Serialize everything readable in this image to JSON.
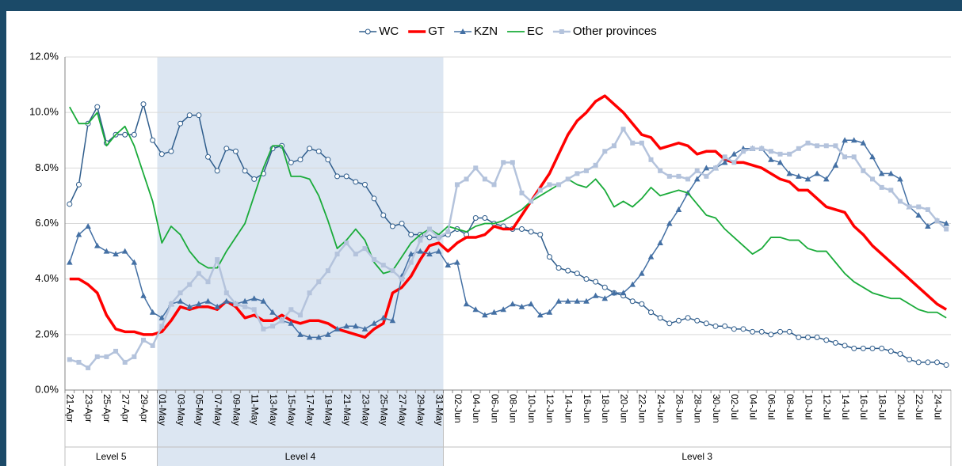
{
  "chart_data": {
    "type": "line",
    "categories": [
      "21-Apr",
      null,
      "23-Apr",
      null,
      "25-Apr",
      null,
      "27-Apr",
      null,
      "29-Apr",
      null,
      "01-May",
      null,
      "03-May",
      null,
      "05-May",
      null,
      "07-May",
      null,
      "09-May",
      null,
      "11-May",
      null,
      "13-May",
      null,
      "15-May",
      null,
      "17-May",
      null,
      "19-May",
      null,
      "21-May",
      null,
      "23-May",
      null,
      "25-May",
      null,
      "27-May",
      null,
      "29-May",
      null,
      "31-May",
      null,
      "02-Jun",
      null,
      "04-Jun",
      null,
      "06-Jun",
      null,
      "08-Jun",
      null,
      "10-Jun",
      null,
      "12-Jun",
      null,
      "14-Jun",
      null,
      "16-Jun",
      null,
      "18-Jun",
      null,
      "20-Jun",
      null,
      "22-Jun",
      null,
      "24-Jun",
      null,
      "26-Jun",
      null,
      "28-Jun",
      null,
      "30-Jun",
      null,
      "02-Jul",
      null,
      "04-Jul",
      null,
      "06-Jul",
      null,
      "08-Jul",
      null,
      "10-Jul",
      null,
      "12-Jul",
      null,
      "14-Jul",
      null,
      "16-Jul",
      null,
      "18-Jul",
      null,
      "20-Jul",
      null,
      "22-Jul",
      null,
      "24-Jul",
      null
    ],
    "series": [
      {
        "name": "WC",
        "color": "#2f5d8c",
        "marker": "circle",
        "width": 1.5,
        "values": [
          6.7,
          7.4,
          9.6,
          10.2,
          8.9,
          9.2,
          9.2,
          9.2,
          10.3,
          9.0,
          8.5,
          8.6,
          9.6,
          9.9,
          9.9,
          8.4,
          7.9,
          8.7,
          8.6,
          7.9,
          7.6,
          7.8,
          8.7,
          8.8,
          8.2,
          8.3,
          8.7,
          8.6,
          8.3,
          7.7,
          7.7,
          7.5,
          7.4,
          6.9,
          6.3,
          5.9,
          6.0,
          5.6,
          5.6,
          5.5,
          5.5,
          5.6,
          5.8,
          5.6,
          6.2,
          6.2,
          6.0,
          5.9,
          5.8,
          5.8,
          5.7,
          5.6,
          4.8,
          4.4,
          4.3,
          4.2,
          4.0,
          3.9,
          3.7,
          3.5,
          3.4,
          3.2,
          3.1,
          2.8,
          2.6,
          2.4,
          2.5,
          2.6,
          2.5,
          2.4,
          2.3,
          2.3,
          2.2,
          2.2,
          2.1,
          2.1,
          2.0,
          2.1,
          2.1,
          1.9,
          1.9,
          1.9,
          1.8,
          1.7,
          1.6,
          1.5,
          1.5,
          1.5,
          1.5,
          1.4,
          1.3,
          1.1,
          1.0,
          1.0,
          1.0,
          0.9
        ]
      },
      {
        "name": "GT",
        "color": "#ff0000",
        "marker": "none",
        "width": 3.5,
        "values": [
          4.0,
          4.0,
          3.8,
          3.5,
          2.7,
          2.2,
          2.1,
          2.1,
          2.0,
          2.0,
          2.1,
          2.5,
          3.0,
          2.9,
          3.0,
          3.0,
          2.9,
          3.2,
          3.0,
          2.6,
          2.7,
          2.5,
          2.5,
          2.7,
          2.5,
          2.4,
          2.5,
          2.5,
          2.4,
          2.2,
          2.1,
          2.0,
          1.9,
          2.2,
          2.4,
          3.5,
          3.7,
          4.1,
          4.7,
          5.2,
          5.3,
          5.0,
          5.3,
          5.5,
          5.5,
          5.6,
          5.9,
          5.8,
          5.8,
          6.3,
          6.8,
          7.3,
          7.8,
          8.5,
          9.2,
          9.7,
          10.0,
          10.4,
          10.6,
          10.3,
          10.0,
          9.6,
          9.2,
          9.1,
          8.7,
          8.8,
          8.9,
          8.8,
          8.5,
          8.6,
          8.6,
          8.3,
          8.2,
          8.2,
          8.1,
          8.0,
          7.8,
          7.6,
          7.5,
          7.2,
          7.2,
          6.9,
          6.6,
          6.5,
          6.4,
          5.9,
          5.6,
          5.2,
          4.9,
          4.6,
          4.3,
          4.0,
          3.7,
          3.4,
          3.1,
          2.9
        ]
      },
      {
        "name": "KZN",
        "color": "#4470a4",
        "marker": "triangle",
        "width": 1.5,
        "values": [
          4.6,
          5.6,
          5.9,
          5.2,
          5.0,
          4.9,
          5.0,
          4.6,
          3.4,
          2.8,
          2.6,
          3.1,
          3.2,
          3.0,
          3.1,
          3.2,
          3.0,
          3.2,
          3.1,
          3.2,
          3.3,
          3.2,
          2.8,
          2.5,
          2.4,
          2.0,
          1.9,
          1.9,
          2.0,
          2.2,
          2.3,
          2.3,
          2.2,
          2.4,
          2.6,
          2.5,
          4.1,
          4.9,
          5.0,
          4.9,
          5.0,
          4.5,
          4.6,
          3.1,
          2.9,
          2.7,
          2.8,
          2.9,
          3.1,
          3.0,
          3.1,
          2.7,
          2.8,
          3.2,
          3.2,
          3.2,
          3.2,
          3.4,
          3.3,
          3.5,
          3.5,
          3.8,
          4.2,
          4.8,
          5.3,
          6.0,
          6.5,
          7.1,
          7.6,
          8.0,
          8.0,
          8.2,
          8.5,
          8.7,
          8.7,
          8.7,
          8.3,
          8.2,
          7.8,
          7.7,
          7.6,
          7.8,
          7.6,
          8.1,
          9.0,
          9.0,
          8.9,
          8.4,
          7.8,
          7.8,
          7.6,
          6.6,
          6.3,
          5.9,
          6.1,
          6.0
        ]
      },
      {
        "name": "EC",
        "color": "#1aab3a",
        "marker": "none",
        "width": 1.8,
        "values": [
          10.2,
          9.6,
          9.6,
          10.0,
          8.8,
          9.2,
          9.5,
          8.8,
          7.8,
          6.8,
          5.3,
          5.9,
          5.6,
          5.0,
          4.6,
          4.4,
          4.4,
          5.0,
          5.5,
          6.0,
          7.0,
          8.0,
          8.8,
          8.8,
          7.7,
          7.7,
          7.6,
          7.0,
          6.1,
          5.1,
          5.4,
          5.8,
          5.4,
          4.6,
          4.2,
          4.3,
          4.8,
          5.3,
          5.6,
          5.8,
          5.6,
          5.9,
          5.8,
          5.7,
          5.9,
          6.0,
          6.0,
          6.1,
          6.3,
          6.5,
          6.8,
          7.0,
          7.2,
          7.4,
          7.6,
          7.4,
          7.3,
          7.6,
          7.2,
          6.6,
          6.8,
          6.6,
          6.9,
          7.3,
          7.0,
          7.1,
          7.2,
          7.1,
          6.7,
          6.3,
          6.2,
          5.8,
          5.5,
          5.2,
          4.9,
          5.1,
          5.5,
          5.5,
          5.4,
          5.4,
          5.1,
          5.0,
          5.0,
          4.6,
          4.2,
          3.9,
          3.7,
          3.5,
          3.4,
          3.3,
          3.3,
          3.1,
          2.9,
          2.8,
          2.8,
          2.6
        ]
      },
      {
        "name": "Other provinces",
        "color": "#b4c3dc",
        "marker": "square",
        "width": 2.5,
        "values": [
          1.1,
          1.0,
          0.8,
          1.2,
          1.2,
          1.4,
          1.0,
          1.2,
          1.8,
          1.6,
          2.3,
          3.1,
          3.5,
          3.8,
          4.2,
          3.9,
          4.7,
          3.5,
          3.1,
          3.0,
          2.9,
          2.2,
          2.3,
          2.5,
          2.9,
          2.7,
          3.5,
          3.9,
          4.3,
          4.9,
          5.3,
          4.9,
          5.1,
          4.7,
          4.5,
          4.3,
          4.0,
          4.6,
          5.4,
          5.8,
          5.5,
          5.7,
          7.4,
          7.6,
          8.0,
          7.6,
          7.4,
          8.2,
          8.2,
          7.1,
          6.8,
          7.2,
          7.4,
          7.4,
          7.6,
          7.8,
          7.9,
          8.1,
          8.6,
          8.8,
          9.4,
          8.9,
          8.9,
          8.3,
          7.9,
          7.7,
          7.7,
          7.6,
          7.9,
          7.7,
          8.0,
          8.4,
          8.2,
          8.6,
          8.7,
          8.7,
          8.6,
          8.5,
          8.5,
          8.7,
          8.9,
          8.8,
          8.8,
          8.8,
          8.4,
          8.4,
          7.9,
          7.6,
          7.3,
          7.2,
          6.8,
          6.6,
          6.6,
          6.5,
          6.1,
          5.8
        ]
      }
    ],
    "ylim": [
      0,
      12
    ],
    "yticks": [
      {
        "value": 0,
        "label": "0.0%"
      },
      {
        "value": 2,
        "label": "2.0%"
      },
      {
        "value": 4,
        "label": "4.0%"
      },
      {
        "value": 6,
        "label": "6.0%"
      },
      {
        "value": 8,
        "label": "8.0%"
      },
      {
        "value": 10,
        "label": "10.0%"
      },
      {
        "value": 12,
        "label": "12.0%"
      }
    ],
    "grid": true,
    "legend": "top",
    "levels": [
      {
        "label": "Level 5",
        "from": "21-Apr"
      },
      {
        "label": "Level 4",
        "from": "01-May",
        "to": "31-May",
        "shaded": true
      },
      {
        "label": "Level 3"
      }
    ]
  }
}
